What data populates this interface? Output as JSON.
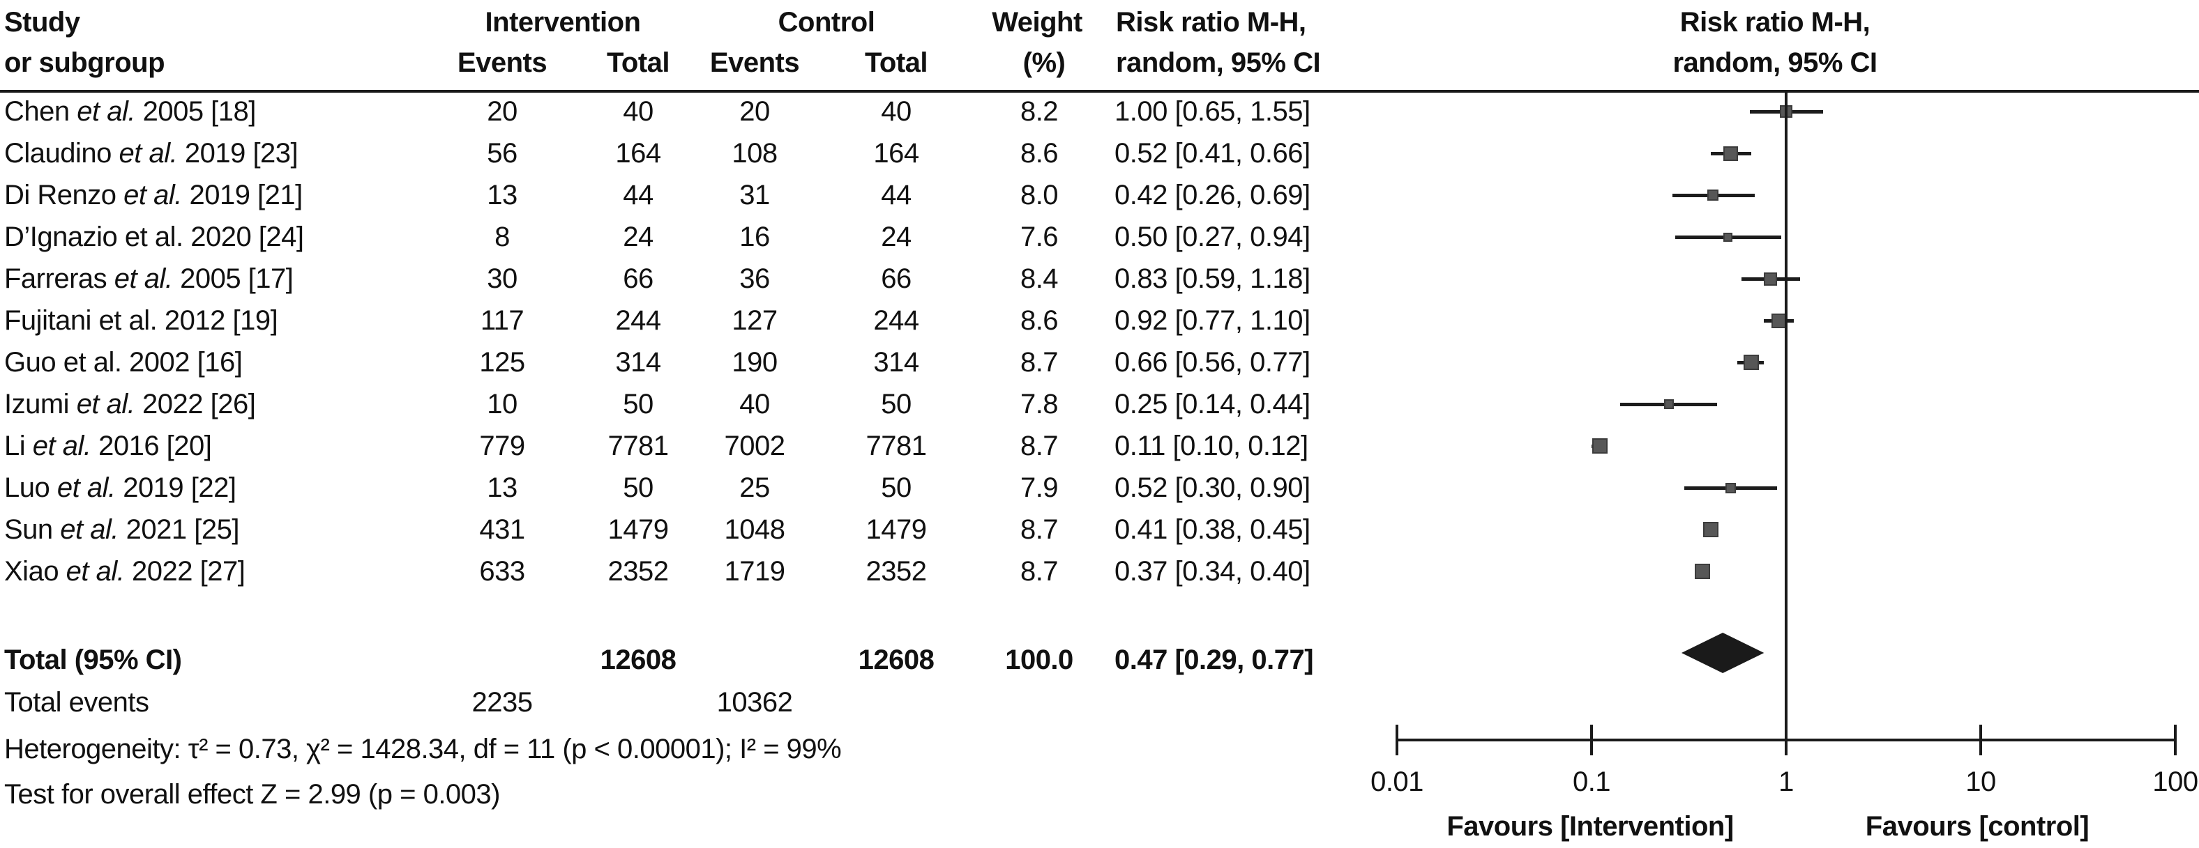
{
  "header": {
    "col1_line1": "Study",
    "col1_line2": "or subgroup",
    "intervention": "Intervention",
    "control": "Control",
    "events_label_int": "Events",
    "total_label_int": "Total",
    "events_label_ctrl": "Events",
    "total_label_ctrl": "Total",
    "weight_line1": "Weight",
    "weight_line2": "(%)",
    "rr_col_line1": "Risk ratio M-H,",
    "rr_col_line2": "random, 95% CI",
    "plot_col_line1": "Risk ratio M-H,",
    "plot_col_line2": "random, 95% CI"
  },
  "chart_data": {
    "type": "scatter",
    "subtype": "forest-plot",
    "x_scale": "log",
    "x_ticks": [
      0.01,
      0.1,
      1,
      10,
      100
    ],
    "x_tick_labels": [
      "0.01",
      "0.1",
      "1",
      "10",
      "100"
    ],
    "no_effect_value": 1,
    "studies": [
      {
        "name_pre": "Chen ",
        "etal": "et al.",
        "etal_italic": true,
        "name_post": " 2005 [18]",
        "int_events": "20",
        "int_total": "40",
        "ctrl_events": "20",
        "ctrl_total": "40",
        "weight": "8.2",
        "rr_label": "1.00 [0.65, 1.55]",
        "rr": 1.0,
        "lo": 0.65,
        "hi": 1.55
      },
      {
        "name_pre": "Claudino ",
        "etal": "et al.",
        "etal_italic": true,
        "name_post": " 2019 [23]",
        "int_events": "56",
        "int_total": "164",
        "ctrl_events": "108",
        "ctrl_total": "164",
        "weight": "8.6",
        "rr_label": "0.52 [0.41, 0.66]",
        "rr": 0.52,
        "lo": 0.41,
        "hi": 0.66
      },
      {
        "name_pre": "Di Renzo ",
        "etal": "et al.",
        "etal_italic": true,
        "name_post": " 2019 [21]",
        "int_events": "13",
        "int_total": "44",
        "ctrl_events": "31",
        "ctrl_total": "44",
        "weight": "8.0",
        "rr_label": "0.42 [0.26, 0.69]",
        "rr": 0.42,
        "lo": 0.26,
        "hi": 0.69
      },
      {
        "name_pre": "D’Ignazio ",
        "etal": "et al.",
        "etal_italic": false,
        "name_post": " 2020 [24]",
        "int_events": "8",
        "int_total": "24",
        "ctrl_events": "16",
        "ctrl_total": "24",
        "weight": "7.6",
        "rr_label": "0.50 [0.27, 0.94]",
        "rr": 0.5,
        "lo": 0.27,
        "hi": 0.94
      },
      {
        "name_pre": "Farreras ",
        "etal": "et al.",
        "etal_italic": true,
        "name_post": " 2005 [17]",
        "int_events": "30",
        "int_total": "66",
        "ctrl_events": "36",
        "ctrl_total": "66",
        "weight": "8.4",
        "rr_label": "0.83 [0.59, 1.18]",
        "rr": 0.83,
        "lo": 0.59,
        "hi": 1.18
      },
      {
        "name_pre": "Fujitani ",
        "etal": "et al.",
        "etal_italic": false,
        "name_post": " 2012 [19]",
        "int_events": "117",
        "int_total": "244",
        "ctrl_events": "127",
        "ctrl_total": "244",
        "weight": "8.6",
        "rr_label": "0.92 [0.77, 1.10]",
        "rr": 0.92,
        "lo": 0.77,
        "hi": 1.1
      },
      {
        "name_pre": "Guo ",
        "etal": "et al.",
        "etal_italic": false,
        "name_post": " 2002 [16]",
        "int_events": "125",
        "int_total": "314",
        "ctrl_events": "190",
        "ctrl_total": "314",
        "weight": "8.7",
        "rr_label": "0.66 [0.56, 0.77]",
        "rr": 0.66,
        "lo": 0.56,
        "hi": 0.77
      },
      {
        "name_pre": "Izumi ",
        "etal": "et al.",
        "etal_italic": true,
        "name_post": " 2022 [26]",
        "int_events": "10",
        "int_total": "50",
        "ctrl_events": "40",
        "ctrl_total": "50",
        "weight": "7.8",
        "rr_label": "0.25 [0.14, 0.44]",
        "rr": 0.25,
        "lo": 0.14,
        "hi": 0.44
      },
      {
        "name_pre": "Li ",
        "etal": "et al.",
        "etal_italic": true,
        "name_post": " 2016 [20]",
        "int_events": "779",
        "int_total": "7781",
        "ctrl_events": "7002",
        "ctrl_total": "7781",
        "weight": "8.7",
        "rr_label": "0.11 [0.10, 0.12]",
        "rr": 0.11,
        "lo": 0.1,
        "hi": 0.12
      },
      {
        "name_pre": "Luo ",
        "etal": "et al.",
        "etal_italic": true,
        "name_post": " 2019 [22]",
        "int_events": "13",
        "int_total": "50",
        "ctrl_events": "25",
        "ctrl_total": "50",
        "weight": "7.9",
        "rr_label": "0.52 [0.30, 0.90]",
        "rr": 0.52,
        "lo": 0.3,
        "hi": 0.9
      },
      {
        "name_pre": "Sun ",
        "etal": "et al.",
        "etal_italic": true,
        "name_post": " 2021 [25]",
        "int_events": "431",
        "int_total": "1479",
        "ctrl_events": "1048",
        "ctrl_total": "1479",
        "weight": "8.7",
        "rr_label": "0.41 [0.38, 0.45]",
        "rr": 0.41,
        "lo": 0.38,
        "hi": 0.45
      },
      {
        "name_pre": "Xiao ",
        "etal": "et al.",
        "etal_italic": true,
        "name_post": " 2022 [27]",
        "int_events": "633",
        "int_total": "2352",
        "ctrl_events": "1719",
        "ctrl_total": "2352",
        "weight": "8.7",
        "rr_label": "0.37 [0.34, 0.40]",
        "rr": 0.37,
        "lo": 0.34,
        "hi": 0.4
      }
    ],
    "total": {
      "label": "Total (95% CI)",
      "int_total": "12608",
      "ctrl_total": "12608",
      "weight": "100.0",
      "rr_label": "0.47 [0.29, 0.77]",
      "rr": 0.47,
      "lo": 0.29,
      "hi": 0.77
    },
    "total_events": {
      "label": "Total events",
      "int_events": "2235",
      "ctrl_events": "10362"
    },
    "heterogeneity": "Heterogeneity: τ² = 0.73, χ² = 1428.34, df = 11 (p < 0.00001); I² = 99%",
    "overall_effect": "Test for overall effect Z = 2.99 (p = 0.003)",
    "favours_left": "Favours [Intervention]",
    "favours_right": "Favours [control]"
  },
  "colors": {
    "marker": "#575757",
    "marker_border": "#3c3c3c",
    "ci_line": "#1c1c1c",
    "axis": "#1a1a1a",
    "diamond": "#1a1a1a",
    "text": "#111111"
  }
}
